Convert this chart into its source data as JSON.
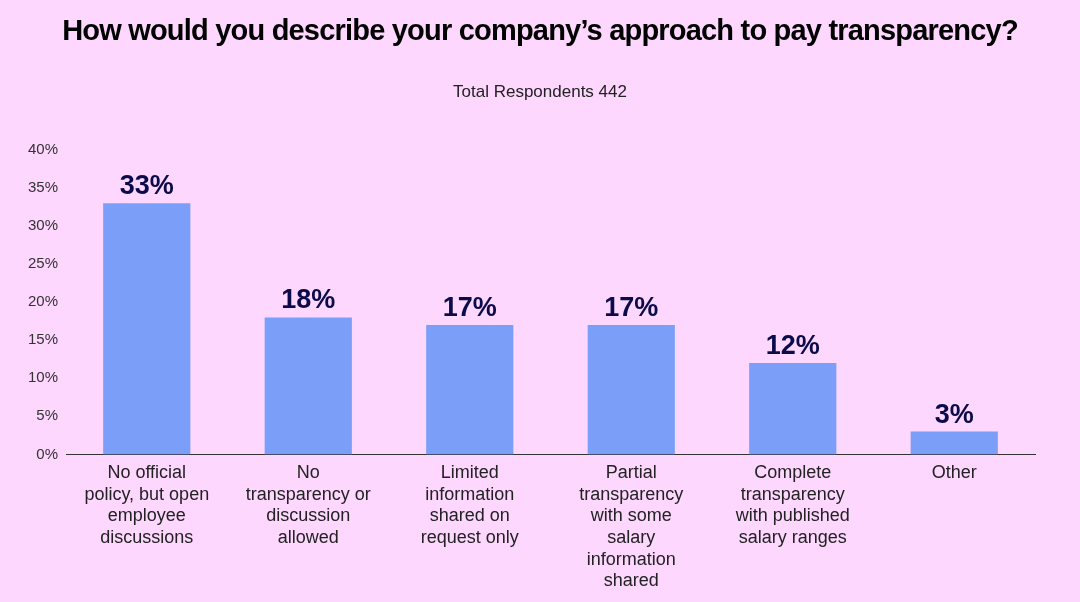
{
  "chart_data": {
    "type": "bar",
    "title": "How would you describe your company’s approach to pay transparency?",
    "subtitle": "Total Respondents 442",
    "categories": [
      "No official policy, but open employee discussions",
      "No transparency or discussion allowed",
      "Limited information shared on request only",
      "Partial transparency with some salary information shared",
      "Complete transparency with published salary ranges",
      "Other"
    ],
    "values": [
      33,
      18,
      17,
      17,
      12,
      3
    ],
    "color": "#7b9ff9",
    "ylim": [
      0,
      40
    ],
    "yticks": [
      {
        "value": 0,
        "label": "0%"
      },
      {
        "value": 5,
        "label": "5%"
      },
      {
        "value": 10,
        "label": "10%"
      },
      {
        "value": 15,
        "label": "15%"
      },
      {
        "value": 20,
        "label": "20%"
      },
      {
        "value": 25,
        "label": "25%"
      },
      {
        "value": 30,
        "label": "30%"
      },
      {
        "value": 35,
        "label": "35%"
      },
      {
        "value": 40,
        "label": "40%"
      }
    ],
    "value_labels": [
      "33%",
      "18%",
      "17%",
      "17%",
      "12%",
      "3%"
    ],
    "grid": false,
    "legend": false
  }
}
